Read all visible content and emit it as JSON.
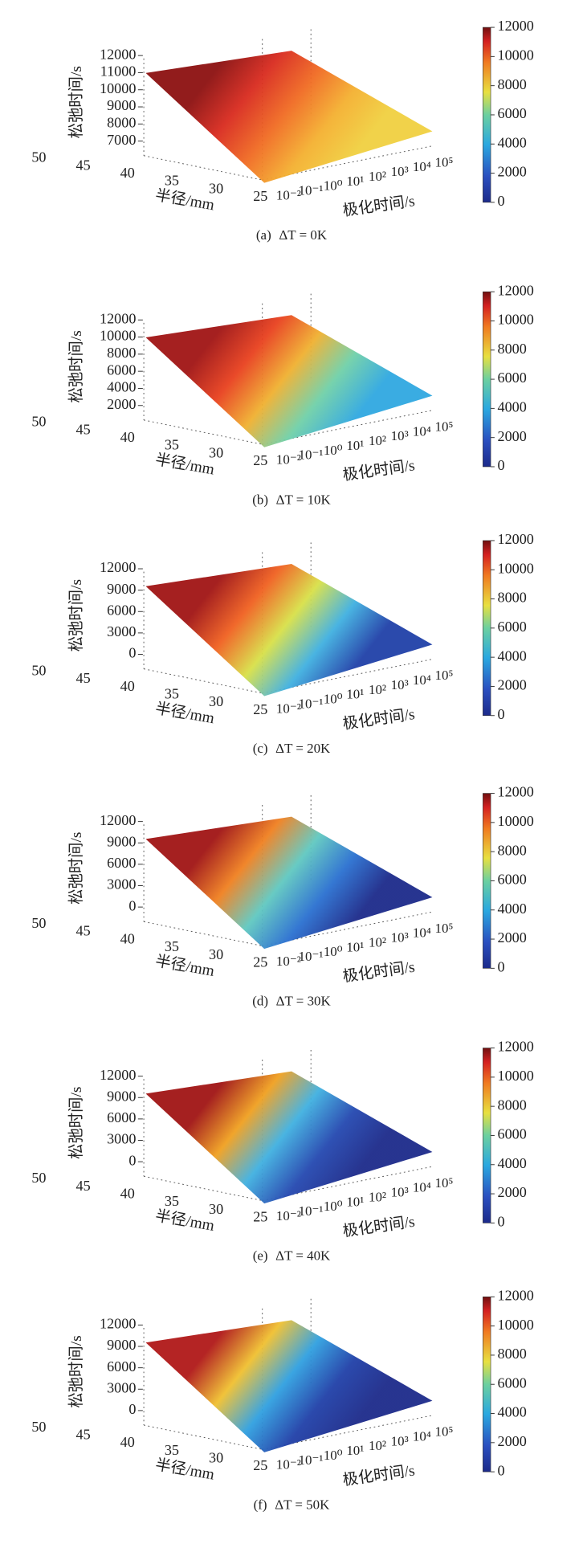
{
  "panels": [
    {
      "caption": "(a)",
      "condition": "ΔT = 0K",
      "z_label": "松弛时间/s",
      "z_ticks": [
        12000,
        11000,
        10000,
        9000,
        8000,
        7000
      ],
      "radius_label": "半径/mm",
      "radius_ticks": [
        50,
        45,
        40,
        35,
        30,
        25
      ],
      "time_label": "极化时间/s",
      "time_ticks": [
        "10⁻²",
        "10⁻¹",
        "10⁰",
        "10¹",
        "10²",
        "10³",
        "10⁴",
        "10⁵"
      ],
      "colorbar_ticks": [
        0,
        2000,
        4000,
        6000,
        8000,
        10000,
        12000
      ]
    },
    {
      "caption": "(b)",
      "condition": "ΔT = 10K",
      "z_label": "松弛时间/s",
      "z_ticks": [
        12000,
        10000,
        8000,
        6000,
        4000,
        2000
      ],
      "radius_label": "半径/mm",
      "radius_ticks": [
        50,
        45,
        40,
        35,
        30,
        25
      ],
      "time_label": "极化时间/s",
      "time_ticks": [
        "10⁻²",
        "10⁻¹",
        "10⁰",
        "10¹",
        "10²",
        "10³",
        "10⁴",
        "10⁵"
      ],
      "colorbar_ticks": [
        0,
        2000,
        4000,
        6000,
        8000,
        10000,
        12000
      ]
    },
    {
      "caption": "(c)",
      "condition": "ΔT = 20K",
      "z_label": "松弛时间/s",
      "z_ticks": [
        12000,
        9000,
        6000,
        3000,
        0
      ],
      "radius_label": "半径/mm",
      "radius_ticks": [
        50,
        45,
        40,
        35,
        30,
        25
      ],
      "time_label": "极化时间/s",
      "time_ticks": [
        "10⁻²",
        "10⁻¹",
        "10⁰",
        "10¹",
        "10²",
        "10³",
        "10⁴",
        "10⁵"
      ],
      "colorbar_ticks": [
        0,
        2000,
        4000,
        6000,
        8000,
        10000,
        12000
      ]
    },
    {
      "caption": "(d)",
      "condition": "ΔT = 30K",
      "z_label": "松弛时间/s",
      "z_ticks": [
        12000,
        9000,
        6000,
        3000,
        0
      ],
      "radius_label": "半径/mm",
      "radius_ticks": [
        50,
        45,
        40,
        35,
        30,
        25
      ],
      "time_label": "极化时间/s",
      "time_ticks": [
        "10⁻²",
        "10⁻¹",
        "10⁰",
        "10¹",
        "10²",
        "10³",
        "10⁴",
        "10⁵"
      ],
      "colorbar_ticks": [
        0,
        2000,
        4000,
        6000,
        8000,
        10000,
        12000
      ]
    },
    {
      "caption": "(e)",
      "condition": "ΔT = 40K",
      "z_label": "松弛时间/s",
      "z_ticks": [
        12000,
        9000,
        6000,
        3000,
        0
      ],
      "radius_label": "半径/mm",
      "radius_ticks": [
        50,
        45,
        40,
        35,
        30,
        25
      ],
      "time_label": "极化时间/s",
      "time_ticks": [
        "10⁻²",
        "10⁻¹",
        "10⁰",
        "10¹",
        "10²",
        "10³",
        "10⁴",
        "10⁵"
      ],
      "colorbar_ticks": [
        0,
        2000,
        4000,
        6000,
        8000,
        10000,
        12000
      ]
    },
    {
      "caption": "(f)",
      "condition": "ΔT = 50K",
      "z_label": "松弛时间/s",
      "z_ticks": [
        12000,
        9000,
        6000,
        3000,
        0
      ],
      "radius_label": "半径/mm",
      "radius_ticks": [
        50,
        45,
        40,
        35,
        30,
        25
      ],
      "time_label": "极化时间/s",
      "time_ticks": [
        "10⁻²",
        "10⁻¹",
        "10⁰",
        "10¹",
        "10²",
        "10³",
        "10⁴",
        "10⁵"
      ],
      "colorbar_ticks": [
        0,
        2000,
        4000,
        6000,
        8000,
        10000,
        12000
      ]
    }
  ]
}
